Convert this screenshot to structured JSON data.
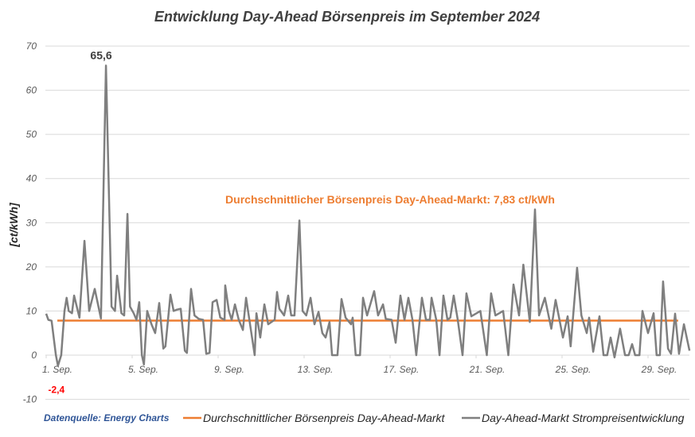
{
  "chart_data": {
    "type": "line",
    "title": "Entwicklung Day-Ahead Börsenpreis im September 2024",
    "ylabel": "[ct/kWh]",
    "xlabel": "",
    "ylim": [
      -10,
      70
    ],
    "yticks": [
      70,
      60,
      50,
      40,
      30,
      20,
      10,
      0,
      -10
    ],
    "xticks": [
      {
        "day": 0,
        "label": "1. Sep."
      },
      {
        "day": 4,
        "label": "5. Sep."
      },
      {
        "day": 8,
        "label": "9. Sep."
      },
      {
        "day": 12,
        "label": "13. Sep."
      },
      {
        "day": 16,
        "label": "17. Sep."
      },
      {
        "day": 20,
        "label": "21. Sep."
      },
      {
        "day": 24,
        "label": "25. Sep."
      },
      {
        "day": 28,
        "label": "29. Sep."
      }
    ],
    "grid": true,
    "legend_position": "bottom",
    "source": "Datenquelle: Energy Charts",
    "annotations": {
      "max": {
        "label": "65,6",
        "day": 2.78,
        "value": 65.6
      },
      "min": {
        "label": "-2,4",
        "day": 0.55,
        "value": -2.4
      },
      "average": {
        "label": "Durchschnittlicher Börsenpreis Day-Ahead-Markt: 7,83 ct/kWh"
      }
    },
    "colors": {
      "average": "#ed7d31",
      "price": "#7f7f7f",
      "min_label": "#ff0000",
      "source": "#2f5597"
    },
    "series": [
      {
        "name": "Durchschnittlicher Börsenpreis Day-Ahead-Markt",
        "type": "constant",
        "value": 7.83,
        "x_range_days": [
          0.52,
          29.4
        ]
      },
      {
        "name": "Day-Ahead-Markt Strompreisentwicklung",
        "x_unit": "days since 1. Sep. 00:00",
        "points": [
          [
            0,
            9.4
          ],
          [
            0.1,
            8
          ],
          [
            0.25,
            7.8
          ],
          [
            0.45,
            0
          ],
          [
            0.55,
            -2.4
          ],
          [
            0.7,
            0
          ],
          [
            0.85,
            10
          ],
          [
            0.95,
            13
          ],
          [
            1.05,
            10
          ],
          [
            1.2,
            9.5
          ],
          [
            1.3,
            13.5
          ],
          [
            1.55,
            8.5
          ],
          [
            1.78,
            25.9
          ],
          [
            2.0,
            10
          ],
          [
            2.26,
            15
          ],
          [
            2.55,
            8.3
          ],
          [
            2.78,
            65.6
          ],
          [
            3.04,
            11
          ],
          [
            3.2,
            10
          ],
          [
            3.3,
            18
          ],
          [
            3.5,
            9.5
          ],
          [
            3.63,
            9
          ],
          [
            3.78,
            32
          ],
          [
            3.9,
            11
          ],
          [
            4.07,
            9.5
          ],
          [
            4.2,
            8
          ],
          [
            4.33,
            12
          ],
          [
            4.45,
            0
          ],
          [
            4.55,
            -2.1
          ],
          [
            4.7,
            10
          ],
          [
            4.9,
            7
          ],
          [
            5.07,
            5
          ],
          [
            5.26,
            11.8
          ],
          [
            5.45,
            1.5
          ],
          [
            5.55,
            2
          ],
          [
            5.78,
            13.7
          ],
          [
            5.93,
            10
          ],
          [
            6.07,
            10.3
          ],
          [
            6.26,
            10.5
          ],
          [
            6.45,
            1
          ],
          [
            6.55,
            0.5
          ],
          [
            6.74,
            15
          ],
          [
            6.9,
            9
          ],
          [
            7.1,
            8.2
          ],
          [
            7.3,
            8
          ],
          [
            7.45,
            0.3
          ],
          [
            7.6,
            0.5
          ],
          [
            7.74,
            12
          ],
          [
            7.93,
            12.5
          ],
          [
            8.1,
            8.5
          ],
          [
            8.3,
            8
          ],
          [
            8.33,
            15.8
          ],
          [
            8.5,
            10
          ],
          [
            8.63,
            8
          ],
          [
            8.78,
            11.5
          ],
          [
            8.96,
            8
          ],
          [
            9.15,
            5.7
          ],
          [
            9.3,
            13
          ],
          [
            9.7,
            0
          ],
          [
            9.78,
            9.5
          ],
          [
            9.96,
            4
          ],
          [
            10.15,
            11.5
          ],
          [
            10.33,
            7
          ],
          [
            10.63,
            8
          ],
          [
            10.74,
            14.3
          ],
          [
            10.85,
            10.5
          ],
          [
            11.07,
            9
          ],
          [
            11.26,
            13.5
          ],
          [
            11.4,
            9
          ],
          [
            11.55,
            9
          ],
          [
            11.78,
            30.5
          ],
          [
            11.93,
            10
          ],
          [
            12.1,
            9
          ],
          [
            12.3,
            13
          ],
          [
            12.48,
            7
          ],
          [
            12.67,
            9.8
          ],
          [
            12.85,
            5
          ],
          [
            13,
            4
          ],
          [
            13.18,
            7.5
          ],
          [
            13.3,
            0
          ],
          [
            13.55,
            0
          ],
          [
            13.74,
            12.7
          ],
          [
            13.93,
            8.5
          ],
          [
            14.18,
            7
          ],
          [
            14.26,
            8.5
          ],
          [
            14.4,
            0
          ],
          [
            14.6,
            0
          ],
          [
            14.74,
            13
          ],
          [
            14.93,
            9
          ],
          [
            15.26,
            14.5
          ],
          [
            15.44,
            9
          ],
          [
            15.67,
            11.5
          ],
          [
            15.8,
            8.2
          ],
          [
            16.07,
            8
          ],
          [
            16.26,
            2.8
          ],
          [
            16.48,
            13.5
          ],
          [
            16.67,
            8
          ],
          [
            16.85,
            13
          ],
          [
            17.04,
            8
          ],
          [
            17.22,
            0
          ],
          [
            17.48,
            13
          ],
          [
            17.67,
            8
          ],
          [
            17.85,
            8
          ],
          [
            17.93,
            13
          ],
          [
            18.15,
            8
          ],
          [
            18.3,
            0
          ],
          [
            18.48,
            13.5
          ],
          [
            18.67,
            8
          ],
          [
            18.8,
            8.5
          ],
          [
            18.96,
            13.5
          ],
          [
            19.15,
            8
          ],
          [
            19.37,
            0
          ],
          [
            19.55,
            14
          ],
          [
            19.78,
            8.8
          ],
          [
            20.2,
            10
          ],
          [
            20.5,
            0
          ],
          [
            20.7,
            14
          ],
          [
            20.9,
            9
          ],
          [
            21.26,
            10
          ],
          [
            21.5,
            0
          ],
          [
            21.74,
            16
          ],
          [
            22,
            9
          ],
          [
            22.2,
            20.5
          ],
          [
            22.5,
            7.5
          ],
          [
            22.74,
            33
          ],
          [
            22.93,
            9
          ],
          [
            23.2,
            13
          ],
          [
            23.5,
            6
          ],
          [
            23.7,
            12.5
          ],
          [
            24.04,
            4
          ],
          [
            24.26,
            8.8
          ],
          [
            24.4,
            2
          ],
          [
            24.7,
            19.8
          ],
          [
            24.9,
            9
          ],
          [
            25.15,
            5
          ],
          [
            25.26,
            8.5
          ],
          [
            25.45,
            0.8
          ],
          [
            25.74,
            8.8
          ],
          [
            25.93,
            0
          ],
          [
            26.1,
            0
          ],
          [
            26.26,
            4
          ],
          [
            26.44,
            -0.5
          ],
          [
            26.7,
            6
          ],
          [
            26.93,
            0
          ],
          [
            27.1,
            0
          ],
          [
            27.26,
            2.5
          ],
          [
            27.4,
            0
          ],
          [
            27.6,
            0
          ],
          [
            27.74,
            10
          ],
          [
            28,
            5
          ],
          [
            28.26,
            9.5
          ],
          [
            28.4,
            0
          ],
          [
            28.55,
            0
          ],
          [
            28.7,
            16.7
          ],
          [
            28.93,
            1.5
          ],
          [
            29.07,
            0.3
          ],
          [
            29.26,
            9.4
          ],
          [
            29.44,
            0.3
          ],
          [
            29.67,
            7
          ],
          [
            29.93,
            1
          ]
        ]
      }
    ]
  }
}
